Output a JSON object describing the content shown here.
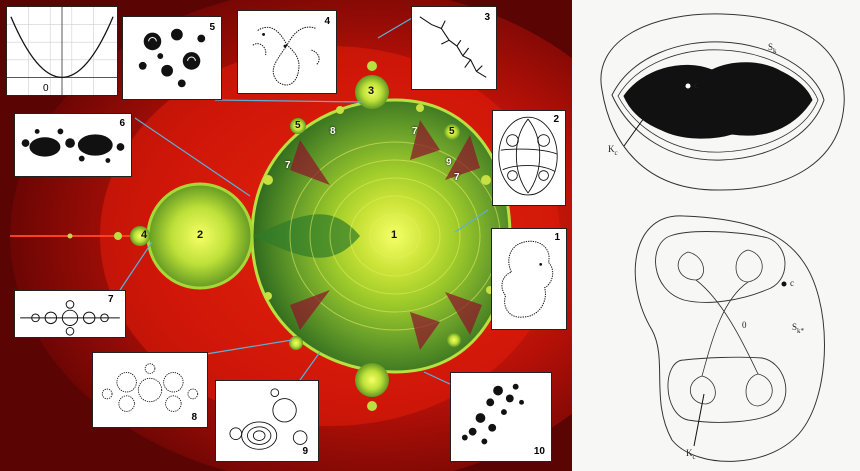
{
  "mandelbrot": {
    "bulb_labels": {
      "main": "1",
      "left": "2",
      "top": "3",
      "far_left": "4",
      "small_5a": "5",
      "small_5b": "5",
      "small_7a": "7",
      "small_7b": "7",
      "small_7c": "7",
      "small_8": "8",
      "small_9": "9"
    },
    "insets": [
      {
        "id": "0",
        "label": "0"
      },
      {
        "id": "1",
        "label": "1"
      },
      {
        "id": "2",
        "label": "2"
      },
      {
        "id": "3",
        "label": "3"
      },
      {
        "id": "4",
        "label": "4"
      },
      {
        "id": "5",
        "label": "5"
      },
      {
        "id": "6",
        "label": "6"
      },
      {
        "id": "7",
        "label": "7"
      },
      {
        "id": "8",
        "label": "8"
      },
      {
        "id": "9",
        "label": "9"
      },
      {
        "id": "10",
        "label": "10"
      }
    ],
    "colors": {
      "background": "#6e0505",
      "glow": "#e02010",
      "bulb": "#c8e040",
      "bulb_core": "#f2ff70",
      "arrow": "#5bb0d8"
    }
  },
  "right_diagrams": {
    "top": {
      "S": "S",
      "S_sub": "k",
      "c": "c",
      "K": "K",
      "K_sub": "c"
    },
    "bottom": {
      "c": "c",
      "zero": "0",
      "S": "S",
      "S_sub": "k*",
      "K": "K",
      "K_sub": "c"
    }
  }
}
